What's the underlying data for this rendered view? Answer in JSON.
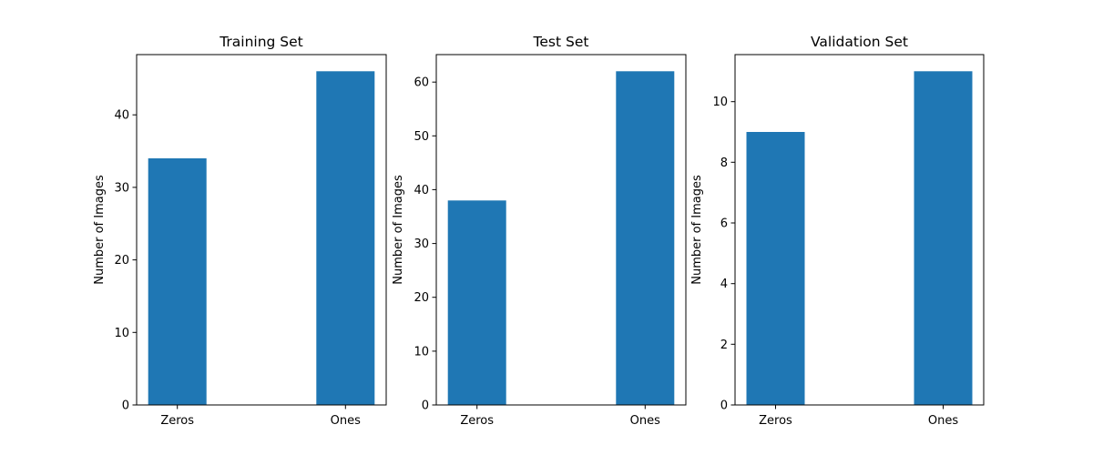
{
  "chart_data": [
    {
      "type": "bar",
      "title": "Training Set",
      "xlabel": "",
      "ylabel": "Number of Images",
      "categories": [
        "Zeros",
        "Ones"
      ],
      "values": [
        34,
        46
      ],
      "ylim": [
        0,
        48.3
      ],
      "yticks": [
        0,
        10,
        20,
        30,
        40
      ],
      "grid": false,
      "color": "#1f77b4"
    },
    {
      "type": "bar",
      "title": "Test Set",
      "xlabel": "",
      "ylabel": "Number of Images",
      "categories": [
        "Zeros",
        "Ones"
      ],
      "values": [
        38,
        62
      ],
      "ylim": [
        0,
        65.1
      ],
      "yticks": [
        0,
        10,
        20,
        30,
        40,
        50,
        60
      ],
      "grid": false,
      "color": "#1f77b4"
    },
    {
      "type": "bar",
      "title": "Validation Set",
      "xlabel": "",
      "ylabel": "Number of Images",
      "categories": [
        "Zeros",
        "Ones"
      ],
      "values": [
        9,
        11
      ],
      "ylim": [
        0,
        11.55
      ],
      "yticks": [
        0,
        2,
        4,
        6,
        8,
        10
      ],
      "grid": false,
      "color": "#1f77b4"
    }
  ]
}
